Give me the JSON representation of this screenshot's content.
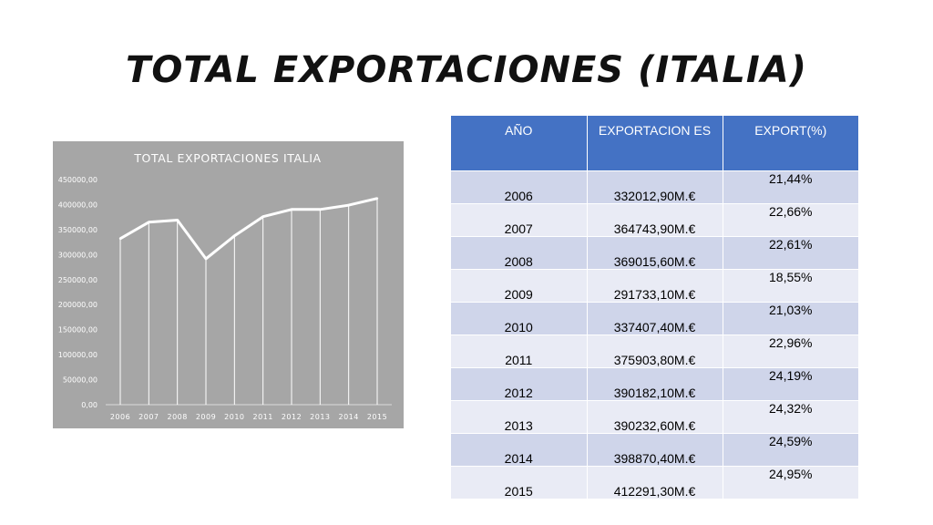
{
  "slide": {
    "title": "TOTAL EXPORTACIONES (ITALIA)"
  },
  "table": {
    "headers": [
      "AÑO",
      "EXPORTACION ES",
      "EXPORT(%)"
    ],
    "rows": [
      {
        "year": "2006",
        "value": "332012,90M.€",
        "pct": "21,44%"
      },
      {
        "year": "2007",
        "value": "364743,90M.€",
        "pct": "22,66%"
      },
      {
        "year": "2008",
        "value": "369015,60M.€",
        "pct": "22,61%"
      },
      {
        "year": "2009",
        "value": "291733,10M.€",
        "pct": "18,55%"
      },
      {
        "year": "2010",
        "value": "337407,40M.€",
        "pct": "21,03%"
      },
      {
        "year": "2011",
        "value": "375903,80M.€",
        "pct": "22,96%"
      },
      {
        "year": "2012",
        "value": "390182,10M.€",
        "pct": "24,19%"
      },
      {
        "year": "2013",
        "value": "390232,60M.€",
        "pct": "24,32%"
      },
      {
        "year": "2014",
        "value": "398870,40M.€",
        "pct": "24,59%"
      },
      {
        "year": "2015",
        "value": "412291,30M.€",
        "pct": "24,95%"
      }
    ]
  },
  "chart_data": {
    "type": "line",
    "title": "TOTAL EXPORTACIONES ITALIA",
    "categories": [
      "2006",
      "2007",
      "2008",
      "2009",
      "2010",
      "2011",
      "2012",
      "2013",
      "2014",
      "2015"
    ],
    "series": [
      {
        "values": [
          332012.9,
          364743.9,
          369015.6,
          291733.1,
          337407.4,
          375903.8,
          390182.1,
          390232.6,
          398870.4,
          412291.3
        ]
      }
    ],
    "yticks": [
      "0,00",
      "50000,00",
      "100000,00",
      "150000,00",
      "200000,00",
      "250000,00",
      "300000,00",
      "350000,00",
      "400000,00",
      "450000,00"
    ],
    "ylim": [
      0,
      450000
    ],
    "drop_lines": true,
    "grid": false,
    "background": "#a6a6a6",
    "line_color": "#ffffff"
  },
  "colors": {
    "table_header": "#4472c4",
    "row_dark": "#cfd5ea",
    "row_light": "#e9ebf5"
  }
}
